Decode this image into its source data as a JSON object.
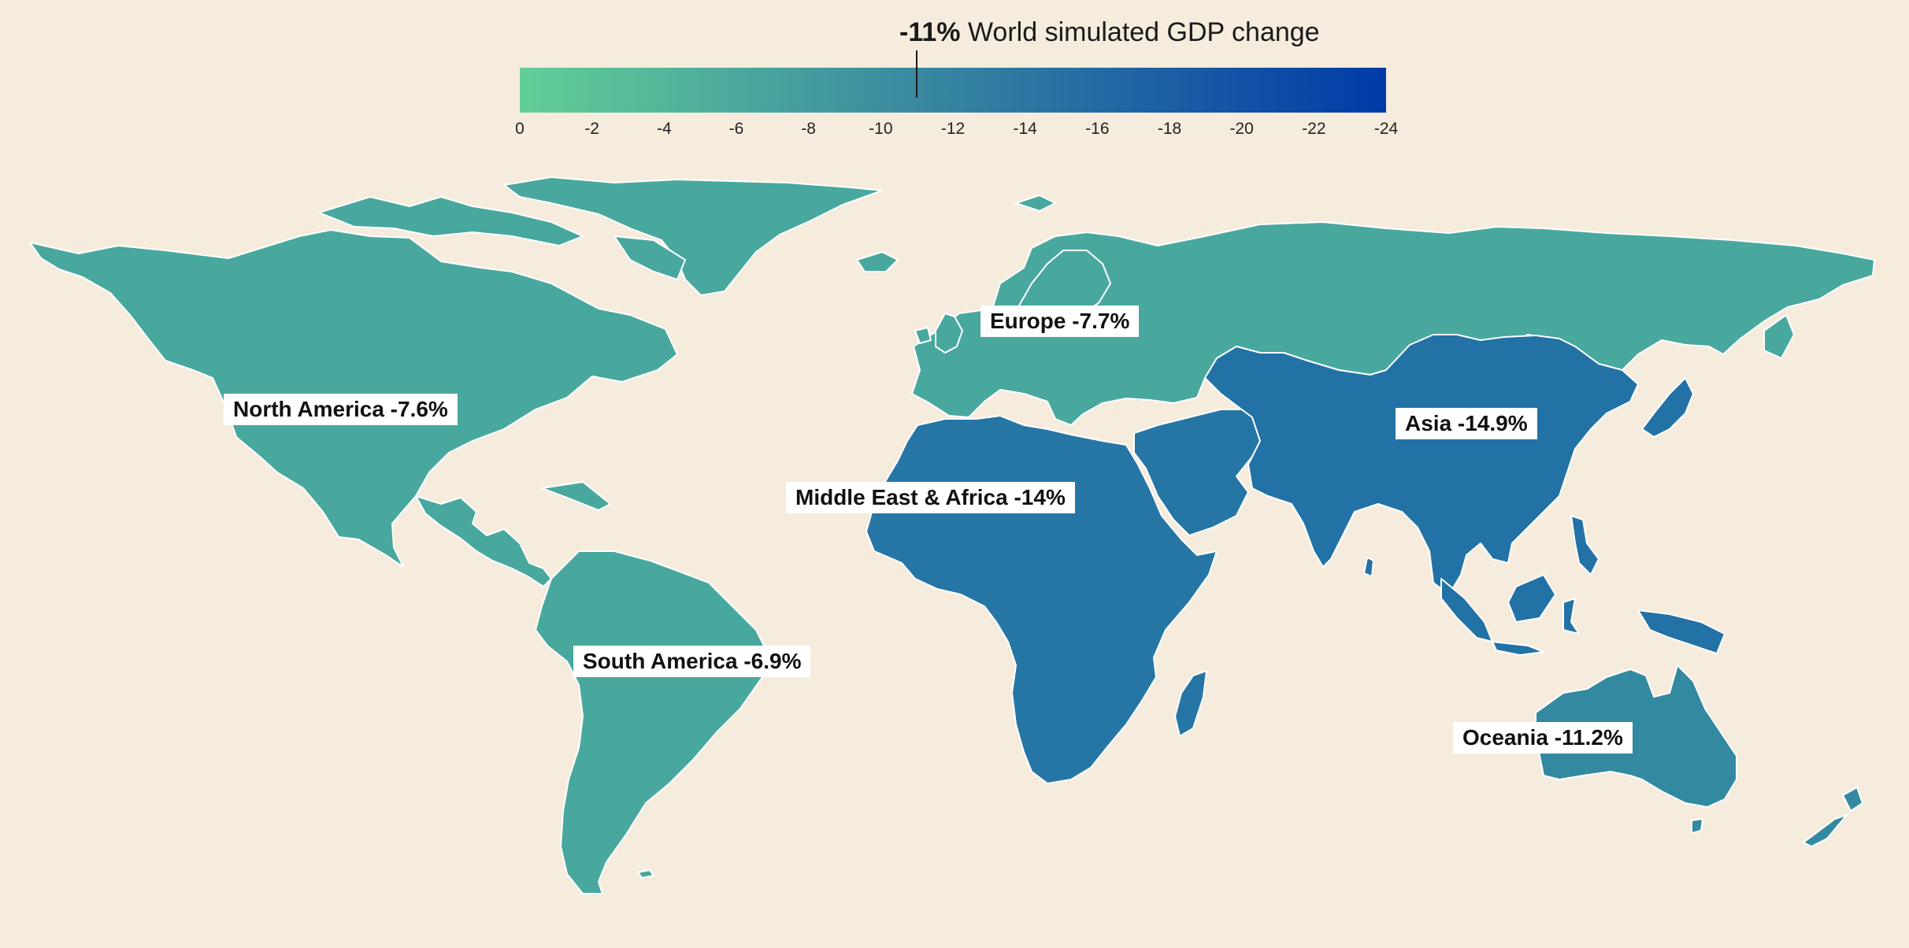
{
  "legend": {
    "value_text": "-11%",
    "title_text": "World simulated GDP change",
    "marker_value": -11,
    "range": [
      0,
      -24
    ],
    "ticks": [
      "0",
      "-2",
      "-4",
      "-6",
      "-8",
      "-10",
      "-12",
      "-14",
      "-16",
      "-18",
      "-20",
      "-22",
      "-24"
    ],
    "color_start": "#62cf97",
    "color_mid": "#3a8aa0",
    "color_end": "#003aa8"
  },
  "colors": {
    "background": "#f5ecdd",
    "border": "#ffffff"
  },
  "regions": [
    {
      "id": "north-america",
      "label": "North America -7.6%",
      "value": -7.6,
      "color": "#48a89e"
    },
    {
      "id": "south-america",
      "label": "South America -6.9%",
      "value": -6.9,
      "color": "#48a89e"
    },
    {
      "id": "europe",
      "label": "Europe -7.7%",
      "value": -7.7,
      "color": "#48a89e"
    },
    {
      "id": "middle-east-africa",
      "label": "Middle East & Africa -14%",
      "value": -14,
      "color": "#2676a5"
    },
    {
      "id": "asia",
      "label": "Asia -14.9%",
      "value": -14.9,
      "color": "#2372a6"
    },
    {
      "id": "oceania",
      "label": "Oceania -11.2%",
      "value": -11.2,
      "color": "#338aa0"
    }
  ]
}
